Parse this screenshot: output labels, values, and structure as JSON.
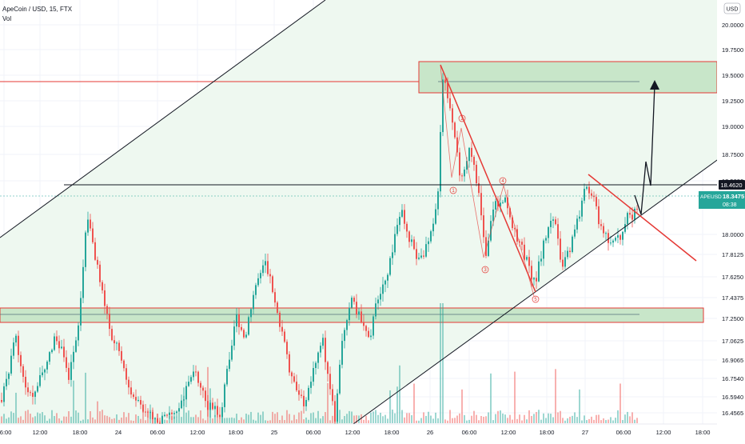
{
  "header": {
    "symbol_title": "ApeCoin / USD, 15, FTX",
    "volume_label": "Vol",
    "currency_badge": "USD"
  },
  "price_axis": {
    "ticks": [
      "20.0000",
      "19.7500",
      "19.5000",
      "19.2500",
      "19.0000",
      "18.7500",
      "18.5000",
      "18.0000",
      "17.8125",
      "17.6250",
      "17.4375",
      "17.2500",
      "17.0625",
      "16.9065",
      "16.7540",
      "16.5940",
      "16.4565"
    ],
    "marker_value": "18.4620",
    "marker_bg": "#131722",
    "last_symbol": "APEUSD",
    "last_price": "18.3475",
    "countdown": "08:38",
    "last_bg": "#26a69a"
  },
  "time_axis": {
    "labels": [
      "06:00",
      "12:00",
      "18:00",
      "24",
      "06:00",
      "12:00",
      "18:00",
      "25",
      "06:00",
      "12:00",
      "18:00",
      "26",
      "06:00",
      "12:00",
      "18:00",
      "27",
      "06:00",
      "12:00",
      "18:00"
    ]
  },
  "wave_labels": [
    "1",
    "2",
    "3",
    "4",
    "5",
    "3"
  ],
  "colors": {
    "bull": "#26a69a",
    "bear": "#ef5350",
    "zone_fill": "#c8e6c9",
    "zone_border": "#e53935",
    "channel_fill": "#eef8f0",
    "trend_line": "#131722"
  },
  "chart_data": {
    "type": "candlestick",
    "title": "ApeCoin / USD, 15, FTX",
    "ylabel": "USD",
    "ylim": [
      16.4,
      20.1
    ],
    "x_labels": [
      "06:00",
      "12:00",
      "18:00",
      "24",
      "06:00",
      "12:00",
      "18:00",
      "25",
      "06:00",
      "12:00",
      "18:00",
      "26",
      "06:00",
      "12:00",
      "18:00",
      "27",
      "06:00",
      "12:00",
      "18:00"
    ],
    "last_price": 18.3475,
    "marked_level": 18.462,
    "supply_zone": [
      19.32,
      19.62
    ],
    "demand_zone": [
      17.22,
      17.33
    ],
    "projection": "break above descending trendline toward 19.45",
    "series": [
      {
        "name": "Vol",
        "type": "volume"
      }
    ]
  }
}
